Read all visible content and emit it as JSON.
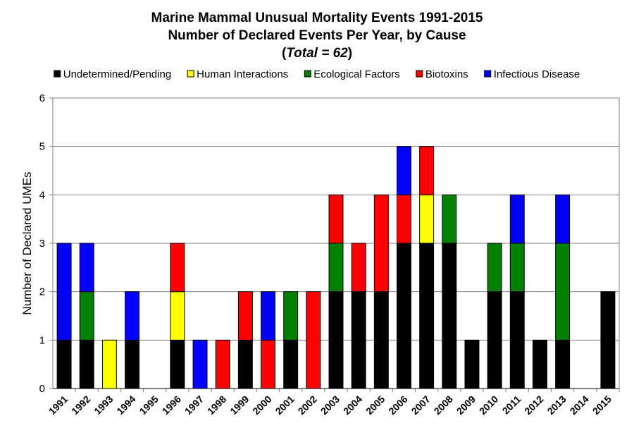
{
  "chart_data": {
    "type": "bar",
    "stacked": true,
    "title": "Marine Mammal Unusual Mortality Events 1991-2015",
    "subtitle": "Number of Declared Events Per Year, by Cause",
    "total_note": {
      "open": "(",
      "label": "Total = 62",
      "close": ")"
    },
    "ylabel": "Number of Declared UMEs",
    "xlabel": "",
    "ylim": [
      0,
      6
    ],
    "yticks": [
      "0",
      "1",
      "2",
      "3",
      "4",
      "5",
      "6"
    ],
    "grid": true,
    "legend_position": "top",
    "categories": [
      "1991",
      "1992",
      "1993",
      "1994",
      "1995",
      "1996",
      "1997",
      "1998",
      "1999",
      "2000",
      "2001",
      "2002",
      "2003",
      "2004",
      "2005",
      "2006",
      "2007",
      "2008",
      "2009",
      "2010",
      "2011",
      "2012",
      "2013",
      "2014",
      "2015"
    ],
    "series": [
      {
        "name": "Undetermined/Pending",
        "color": "#000000",
        "values": [
          1,
          1,
          0,
          1,
          0,
          1,
          0,
          0,
          1,
          0,
          1,
          0,
          2,
          2,
          2,
          3,
          3,
          3,
          1,
          2,
          2,
          1,
          1,
          0,
          2
        ]
      },
      {
        "name": "Human Interactions",
        "color": "#FFFF00",
        "values": [
          0,
          0,
          1,
          0,
          0,
          1,
          0,
          0,
          0,
          0,
          0,
          0,
          0,
          0,
          0,
          0,
          1,
          0,
          0,
          0,
          0,
          0,
          0,
          0,
          0
        ]
      },
      {
        "name": "Ecological Factors",
        "color": "#008000",
        "values": [
          0,
          1,
          0,
          0,
          0,
          0,
          0,
          0,
          0,
          0,
          1,
          0,
          1,
          0,
          0,
          0,
          0,
          1,
          0,
          1,
          1,
          0,
          2,
          0,
          0
        ]
      },
      {
        "name": "Biotoxins",
        "color": "#FF0000",
        "values": [
          0,
          0,
          0,
          0,
          0,
          1,
          0,
          1,
          1,
          1,
          0,
          2,
          1,
          1,
          2,
          1,
          1,
          0,
          0,
          0,
          0,
          0,
          0,
          0,
          0
        ]
      },
      {
        "name": "Infectious Disease",
        "color": "#0000FF",
        "values": [
          2,
          1,
          0,
          1,
          0,
          0,
          1,
          0,
          0,
          1,
          0,
          0,
          0,
          0,
          0,
          1,
          0,
          0,
          0,
          0,
          1,
          0,
          1,
          0,
          0
        ]
      }
    ]
  }
}
